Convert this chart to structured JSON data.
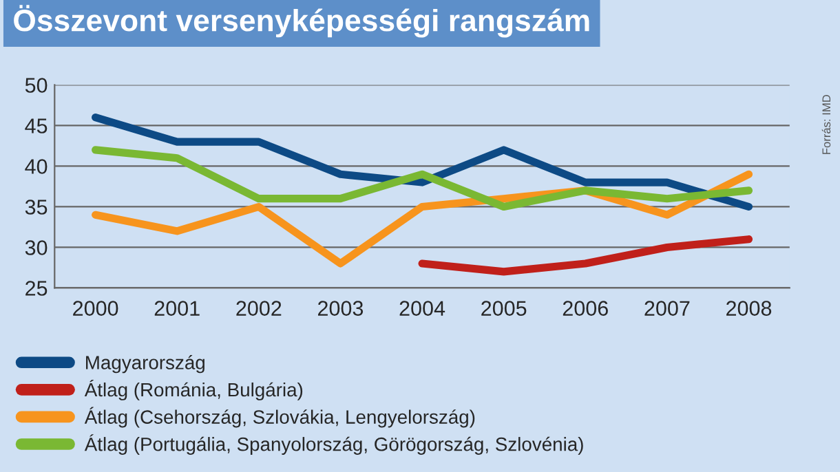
{
  "chart_data": {
    "type": "line",
    "title": "Összevont versenyképességi rangszám",
    "categories": [
      "2000",
      "2001",
      "2002",
      "2003",
      "2004",
      "2005",
      "2006",
      "2007",
      "2008"
    ],
    "series": [
      {
        "name": "Magyarország",
        "color": "#0d4a85",
        "values": [
          46,
          43,
          43,
          39,
          38,
          42,
          38,
          38,
          35
        ]
      },
      {
        "name": "Átlag (Románia, Bulgária)",
        "color": "#c0201a",
        "values": [
          null,
          null,
          null,
          null,
          28,
          27,
          28,
          30,
          31
        ]
      },
      {
        "name": "Átlag (Csehország, Szlovákia, Lengyelország)",
        "color": "#f7941d",
        "values": [
          34,
          32,
          35,
          28,
          35,
          36,
          37,
          34,
          39
        ]
      },
      {
        "name": "Átlag (Portugália, Spanyolország, Görögország, Szlovénia)",
        "color": "#7ab833",
        "values": [
          42,
          41,
          36,
          36,
          39,
          35,
          37,
          36,
          37
        ]
      }
    ],
    "ylim": [
      25,
      50
    ],
    "yticks": [
      25,
      30,
      35,
      40,
      45,
      50
    ],
    "grid": "y",
    "legend": "bottom",
    "marker": "none",
    "line_style": "solid",
    "annotations": [
      "Forrás: IMD"
    ]
  }
}
